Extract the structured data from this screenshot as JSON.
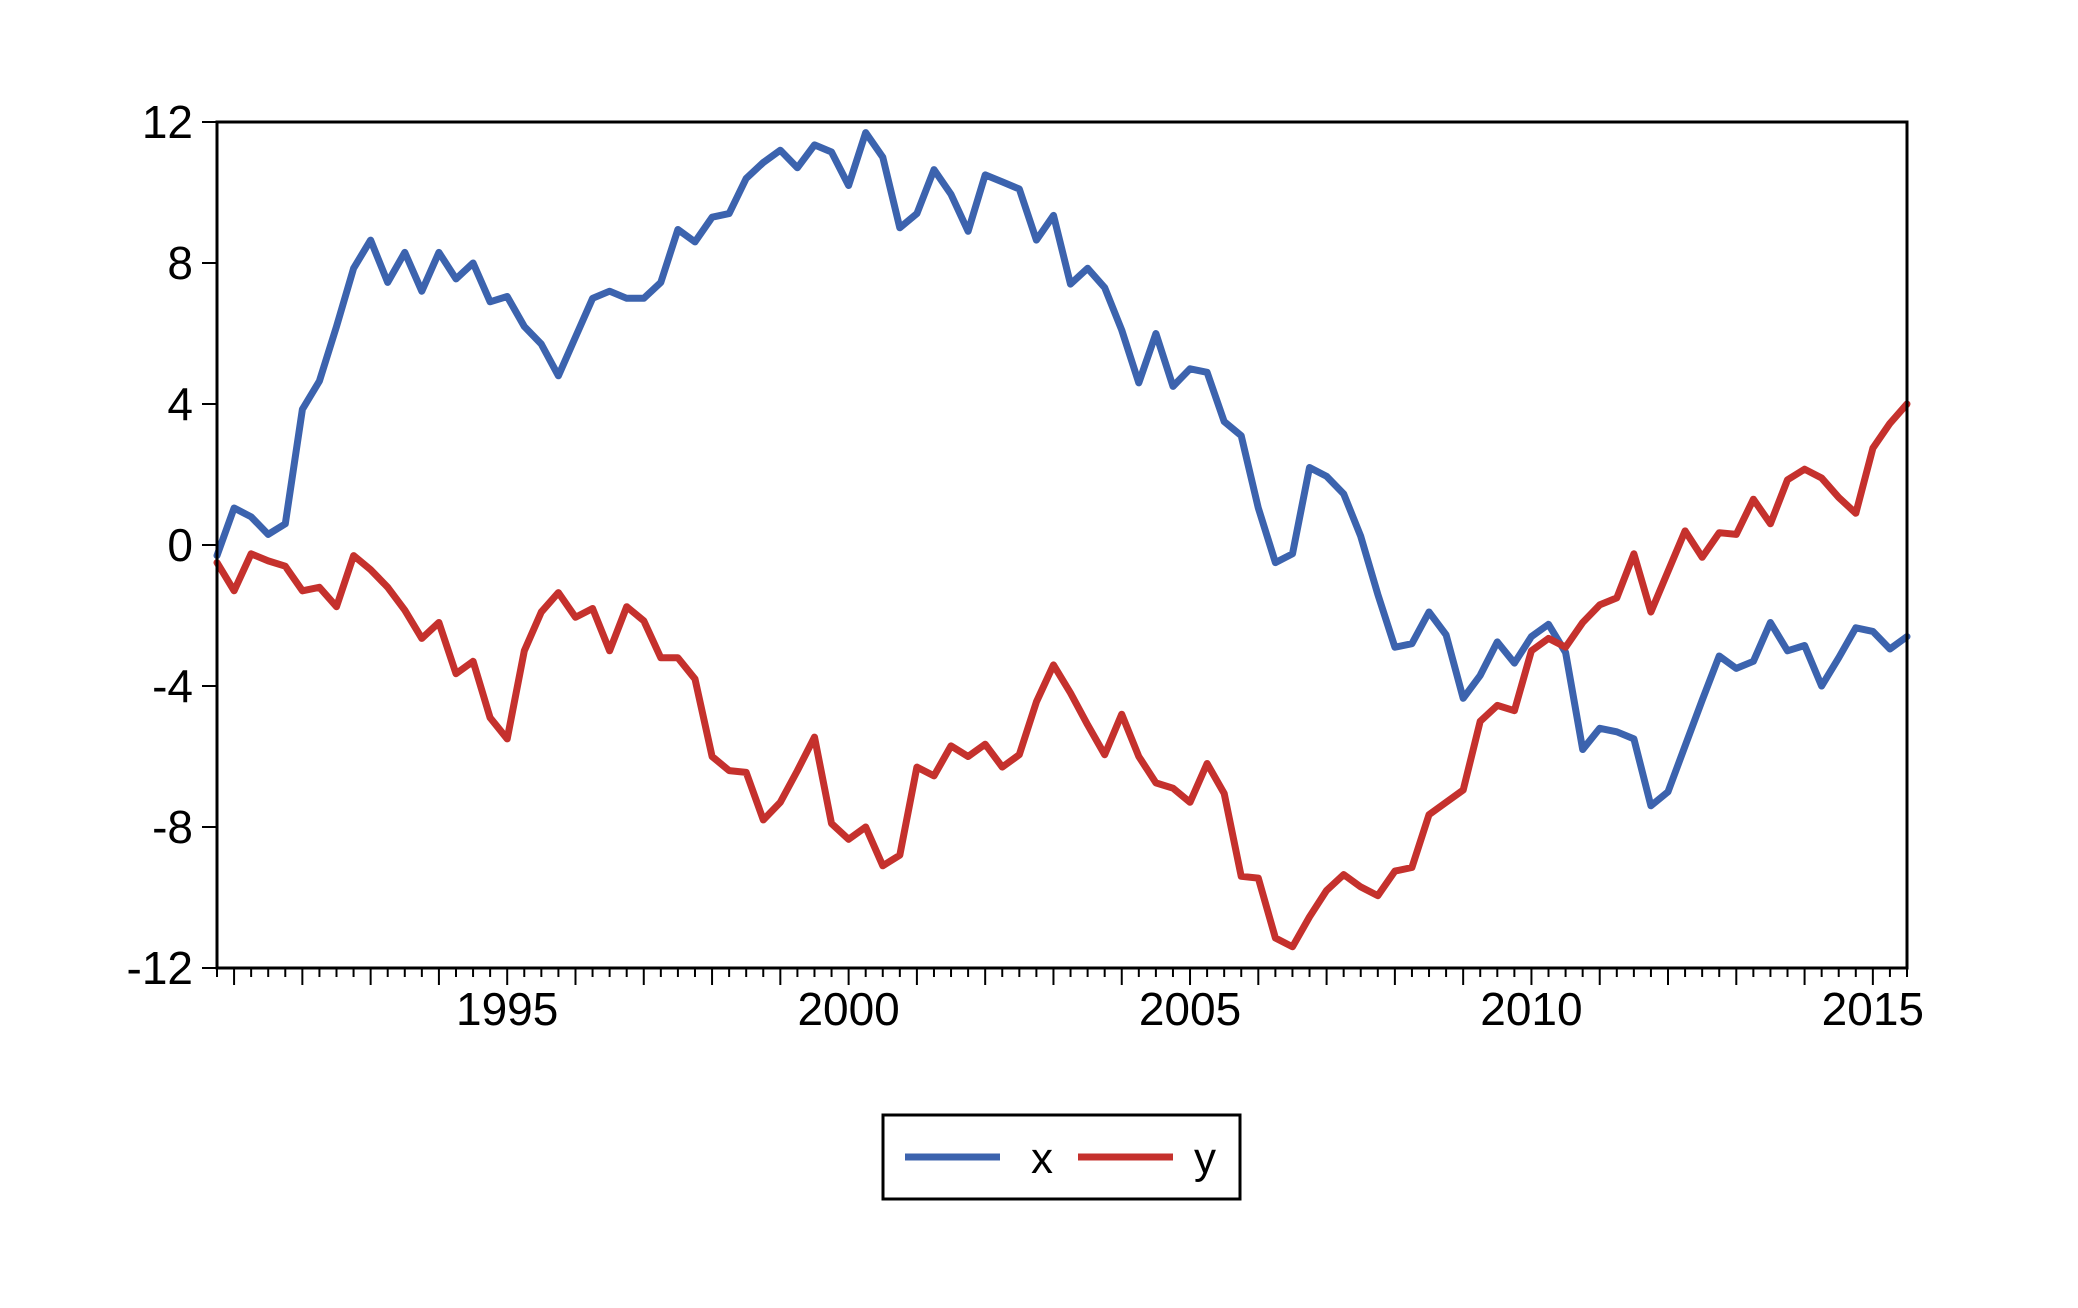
{
  "chart_data": {
    "type": "line",
    "title": "",
    "xlabel": "",
    "ylabel": "",
    "x_range": [
      "1991Q1",
      "2015Q4"
    ],
    "frequency": "quarterly",
    "grid": false,
    "x_axis": {
      "tick_labels": [
        "1995",
        "2000",
        "2005",
        "2010",
        "2015"
      ],
      "label_point_indices": [
        17,
        37,
        57,
        77,
        97
      ],
      "minor_tick_every_points": 1,
      "major_tick_every_points": 4,
      "first_major_tick_index": 1
    },
    "y_axis": {
      "min": -12,
      "max": 12,
      "ticks": [
        12,
        8,
        4,
        0,
        -4,
        -8,
        -12
      ]
    },
    "series": [
      {
        "name": "x",
        "color": "#3C63AE",
        "values": [
          -0.3,
          1.05,
          0.8,
          0.3,
          0.6,
          3.85,
          4.65,
          6.2,
          7.85,
          8.65,
          7.45,
          8.3,
          7.2,
          8.3,
          7.55,
          8.0,
          6.9,
          7.05,
          6.2,
          5.7,
          4.8,
          5.9,
          7.0,
          7.2,
          7.0,
          7.0,
          7.45,
          8.95,
          8.6,
          9.3,
          9.4,
          10.4,
          10.85,
          11.2,
          10.7,
          11.35,
          11.15,
          10.2,
          11.7,
          11.0,
          9.0,
          9.4,
          10.65,
          9.95,
          8.9,
          10.5,
          10.3,
          10.1,
          8.65,
          9.35,
          7.4,
          7.85,
          7.3,
          6.1,
          4.6,
          6.0,
          4.5,
          5.0,
          4.9,
          3.5,
          3.1,
          1.05,
          -0.5,
          -0.25,
          2.2,
          1.95,
          1.45,
          0.25,
          -1.4,
          -2.9,
          -2.8,
          -1.9,
          -2.55,
          -4.35,
          -3.7,
          -2.75,
          -3.35,
          -2.6,
          -2.25,
          -3.05,
          -5.8,
          -5.2,
          -5.3,
          -5.5,
          -7.4,
          -7.0,
          -5.7,
          -4.4,
          -3.15,
          -3.5,
          -3.3,
          -2.2,
          -3.0,
          -2.85,
          -4.0,
          -3.2,
          -2.35,
          -2.45,
          -2.95,
          -2.6
        ]
      },
      {
        "name": "y",
        "color": "#C5312D",
        "values": [
          -0.5,
          -1.3,
          -0.25,
          -0.45,
          -0.6,
          -1.3,
          -1.2,
          -1.75,
          -0.3,
          -0.7,
          -1.2,
          -1.85,
          -2.65,
          -2.2,
          -3.65,
          -3.3,
          -4.9,
          -5.5,
          -3.0,
          -1.9,
          -1.35,
          -2.05,
          -1.8,
          -3.0,
          -1.75,
          -2.15,
          -3.2,
          -3.2,
          -3.8,
          -6.0,
          -6.4,
          -6.45,
          -7.8,
          -7.3,
          -6.4,
          -5.45,
          -7.9,
          -8.35,
          -8.0,
          -9.1,
          -8.8,
          -6.3,
          -6.55,
          -5.7,
          -6.0,
          -5.65,
          -6.3,
          -5.95,
          -4.45,
          -3.4,
          -4.2,
          -5.1,
          -5.95,
          -4.8,
          -6.0,
          -6.75,
          -6.9,
          -7.3,
          -6.2,
          -7.05,
          -9.4,
          -9.45,
          -11.15,
          -11.4,
          -10.55,
          -9.8,
          -9.35,
          -9.7,
          -9.95,
          -9.25,
          -9.15,
          -7.65,
          -7.3,
          -6.95,
          -5.0,
          -4.55,
          -4.7,
          -3.0,
          -2.65,
          -2.9,
          -2.2,
          -1.7,
          -1.5,
          -0.25,
          -1.9,
          -0.75,
          0.4,
          -0.35,
          0.35,
          0.3,
          1.3,
          0.6,
          1.85,
          2.15,
          1.9,
          1.35,
          0.9,
          2.75,
          3.45,
          4.0
        ]
      }
    ],
    "legend": {
      "position": "bottom-center",
      "border": true,
      "entries": [
        "x",
        "y"
      ]
    }
  }
}
